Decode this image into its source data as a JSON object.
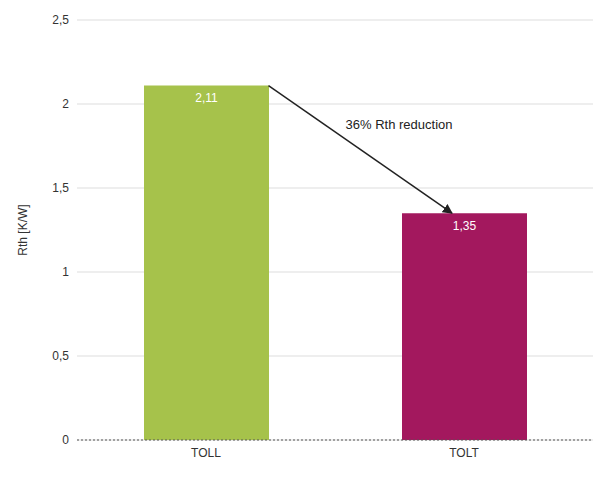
{
  "chart_data": {
    "type": "bar",
    "categories": [
      "TOLL",
      "TOLT"
    ],
    "values": [
      2.11,
      1.35
    ],
    "value_labels": [
      "2,11",
      "1,35"
    ],
    "colors": [
      "#a6c24b",
      "#a3185e"
    ],
    "ylabel": "Rth [K/W]",
    "ylim": [
      0,
      2.5
    ],
    "yticks": [
      0,
      {
        "value": 0.5,
        "label": "0,5"
      },
      1,
      {
        "value": 1.5,
        "label": "1,5"
      },
      2,
      {
        "value": 2.5,
        "label": "2,5"
      }
    ],
    "grid": true,
    "data_labels": true,
    "annotations": [
      {
        "text": "36% Rth reduction"
      }
    ]
  }
}
